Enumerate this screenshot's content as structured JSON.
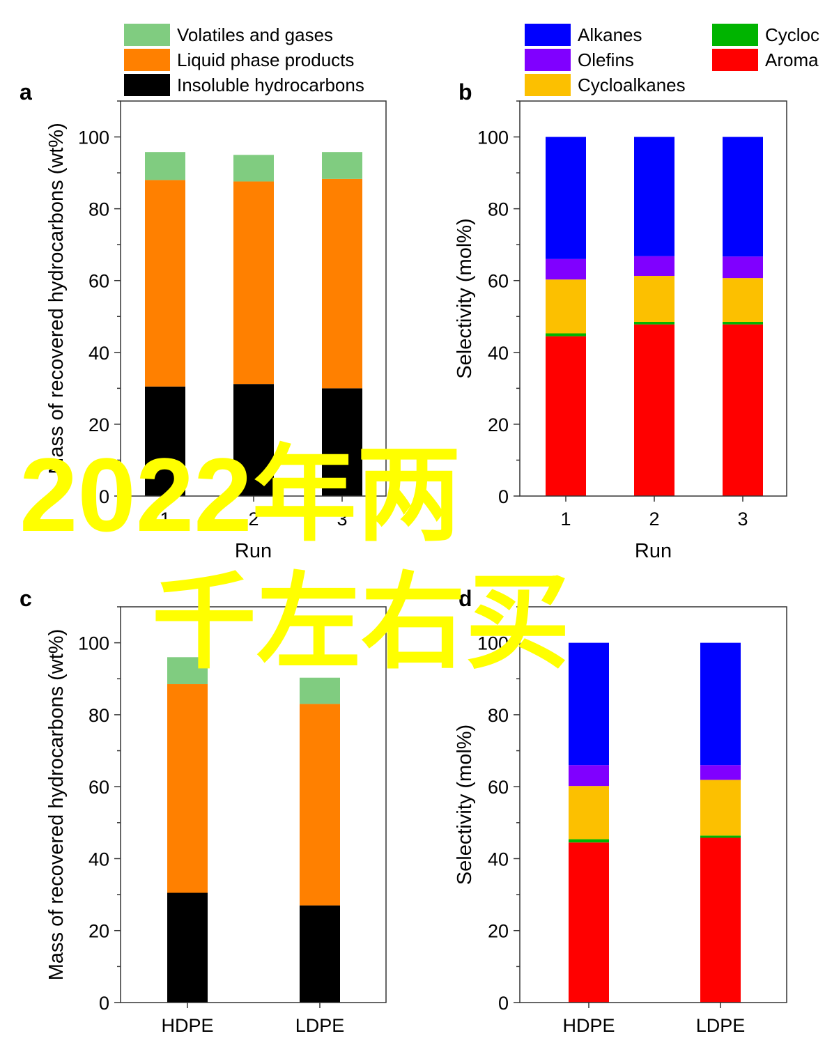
{
  "chart_data": [
    {
      "panel": "a",
      "type": "bar",
      "stacked": true,
      "categories": [
        "1",
        "2",
        "3"
      ],
      "xlabel": "Run",
      "ylabel": "Mass of recovered hydrocarbons (wt%)",
      "ylim": [
        0,
        110
      ],
      "yticks": [
        0,
        20,
        40,
        60,
        80,
        100
      ],
      "series": [
        {
          "name": "Insoluble hydrocarbons",
          "color": "#000000",
          "values": [
            30.5,
            31.2,
            30.0
          ]
        },
        {
          "name": "Liquid phase products",
          "color": "#ff8000",
          "values": [
            57.5,
            56.4,
            58.3
          ]
        },
        {
          "name": "Volatiles and gases",
          "color": "#80cc80",
          "values": [
            7.8,
            7.4,
            7.5
          ]
        }
      ],
      "legend_order": [
        "Volatiles and gases",
        "Liquid phase products",
        "Insoluble hydrocarbons"
      ],
      "legend_position": "top"
    },
    {
      "panel": "b",
      "type": "bar",
      "stacked": true,
      "categories": [
        "1",
        "2",
        "3"
      ],
      "xlabel": "Run",
      "ylabel": "Selectivity (mol%)",
      "ylim": [
        0,
        110
      ],
      "yticks": [
        0,
        20,
        40,
        60,
        80,
        100
      ],
      "series": [
        {
          "name": "Aromatics",
          "label_visible": "Aroma",
          "color": "#ff0000",
          "values": [
            44.5,
            47.8,
            47.8
          ]
        },
        {
          "name": "Cycloolefins",
          "label_visible": "Cycloc",
          "color": "#00b400",
          "values": [
            0.8,
            0.7,
            0.7
          ]
        },
        {
          "name": "Cycloalkanes",
          "color": "#fcc000",
          "values": [
            15.0,
            12.8,
            12.2
          ]
        },
        {
          "name": "Olefins",
          "color": "#8000ff",
          "values": [
            5.7,
            5.5,
            6.0
          ]
        },
        {
          "name": "Alkanes",
          "color": "#0000ff",
          "values": [
            34.0,
            33.2,
            33.3
          ]
        }
      ],
      "legend_order": [
        "Alkanes",
        "Olefins",
        "Cycloalkanes",
        "Cycloolefins",
        "Aromatics"
      ],
      "legend_position": "top"
    },
    {
      "panel": "c",
      "type": "bar",
      "stacked": true,
      "categories": [
        "HDPE",
        "LDPE"
      ],
      "xlabel": "",
      "ylabel": "Mass of recovered hydrocarbons (wt%)",
      "ylim": [
        0,
        110
      ],
      "yticks": [
        0,
        20,
        40,
        60,
        80,
        100
      ],
      "series": [
        {
          "name": "Insoluble hydrocarbons",
          "color": "#000000",
          "values": [
            30.5,
            27.0
          ]
        },
        {
          "name": "Liquid phase products",
          "color": "#ff8000",
          "values": [
            58.0,
            56.0
          ]
        },
        {
          "name": "Volatiles and gases",
          "color": "#80cc80",
          "values": [
            7.5,
            7.3
          ]
        }
      ]
    },
    {
      "panel": "d",
      "type": "bar",
      "stacked": true,
      "categories": [
        "HDPE",
        "LDPE"
      ],
      "xlabel": "",
      "ylabel": "Selectivity (mol%)",
      "ylim": [
        0,
        110
      ],
      "yticks": [
        0,
        20,
        40,
        60,
        80,
        100
      ],
      "series": [
        {
          "name": "Aromatics",
          "color": "#ff0000",
          "values": [
            44.5,
            45.8
          ]
        },
        {
          "name": "Cycloolefins",
          "color": "#00b400",
          "values": [
            0.9,
            0.6
          ]
        },
        {
          "name": "Cycloalkanes",
          "color": "#fcc000",
          "values": [
            14.8,
            15.5
          ]
        },
        {
          "name": "Olefins",
          "color": "#8000ff",
          "values": [
            5.8,
            4.1
          ]
        },
        {
          "name": "Alkanes",
          "color": "#0000ff",
          "values": [
            34.0,
            34.0
          ]
        }
      ]
    }
  ],
  "overlay_text": {
    "line1": "2022年两",
    "line2": "千左右买",
    "color": "#ffff00"
  }
}
